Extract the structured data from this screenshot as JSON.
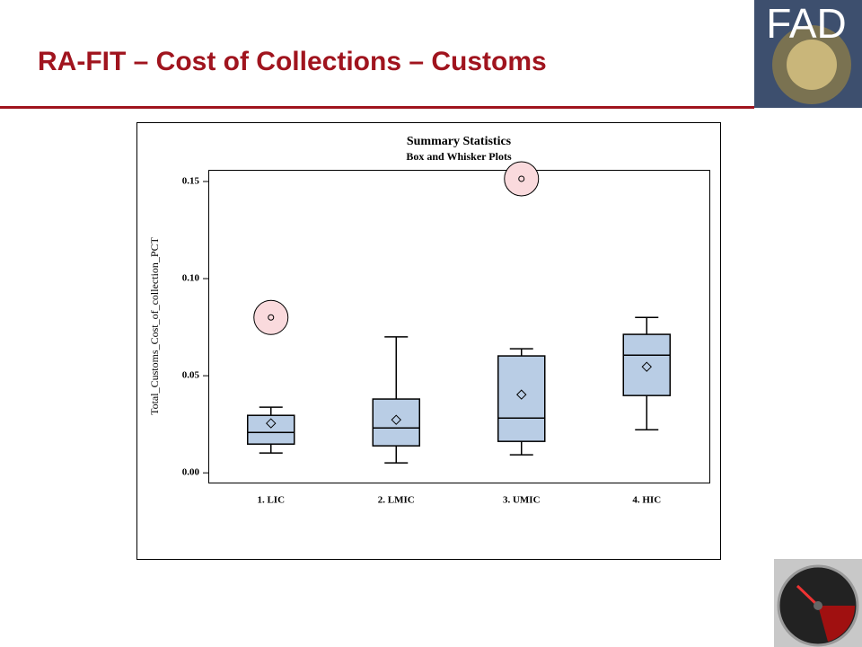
{
  "header": {
    "title": "RA-FIT – Cost of Collections – Customs",
    "logo": "FAD"
  },
  "chart_data": {
    "type": "box",
    "title": "Summary Statistics",
    "subtitle": "Box and Whisker Plots",
    "y_label": "Total_Customs_Cost_of_collection_PCT",
    "categories": [
      "1. LIC",
      "2. LMIC",
      "3. UMIC",
      "4. HIC"
    ],
    "box_color": "#b9cde5",
    "outlier_highlight": "#fadadd",
    "boxes": [
      {
        "min": 0.0102,
        "q1": 0.0148,
        "median": 0.0208,
        "q3": 0.0296,
        "max": 0.0338,
        "mean": 0.0255,
        "outliers": [
          0.08
        ]
      },
      {
        "min": 0.0051,
        "q1": 0.0139,
        "median": 0.0231,
        "q3": 0.038,
        "max": 0.07,
        "mean": 0.0273,
        "outliers": []
      },
      {
        "min": 0.0093,
        "q1": 0.0162,
        "median": 0.0282,
        "q3": 0.0602,
        "max": 0.0639,
        "mean": 0.0403,
        "outliers": [
          0.1514
        ]
      },
      {
        "min": 0.0222,
        "q1": 0.0398,
        "median": 0.0606,
        "q3": 0.0713,
        "max": 0.08,
        "mean": 0.0546,
        "outliers": []
      }
    ],
    "ylim": [
      -0.005,
      0.156
    ],
    "yticks": [
      {
        "value": 0,
        "label": "0.00"
      },
      0.05,
      {
        "value": 0.1,
        "label": "0.10"
      },
      0.15
    ]
  }
}
